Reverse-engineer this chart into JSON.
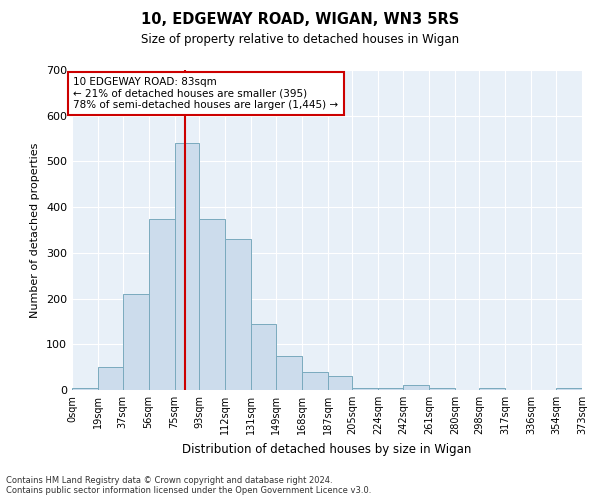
{
  "title": "10, EDGEWAY ROAD, WIGAN, WN3 5RS",
  "subtitle": "Size of property relative to detached houses in Wigan",
  "xlabel": "Distribution of detached houses by size in Wigan",
  "ylabel": "Number of detached properties",
  "bar_color": "#ccdcec",
  "bar_edge_color": "#7aaabe",
  "background_color": "#e8f0f8",
  "grid_color": "#ffffff",
  "red_line_color": "#cc0000",
  "red_line_x": 83,
  "annotation_text": "10 EDGEWAY ROAD: 83sqm\n← 21% of detached houses are smaller (395)\n78% of semi-detached houses are larger (1,445) →",
  "bin_edges": [
    0,
    19,
    37,
    56,
    75,
    93,
    112,
    131,
    149,
    168,
    187,
    205,
    224,
    242,
    261,
    280,
    298,
    317,
    336,
    354,
    373
  ],
  "bin_labels": [
    "0sqm",
    "19sqm",
    "37sqm",
    "56sqm",
    "75sqm",
    "93sqm",
    "112sqm",
    "131sqm",
    "149sqm",
    "168sqm",
    "187sqm",
    "205sqm",
    "224sqm",
    "242sqm",
    "261sqm",
    "280sqm",
    "298sqm",
    "317sqm",
    "336sqm",
    "354sqm",
    "373sqm"
  ],
  "bar_heights": [
    5,
    50,
    210,
    375,
    540,
    375,
    330,
    145,
    75,
    40,
    30,
    5,
    5,
    10,
    5,
    0,
    5,
    0,
    0,
    5
  ],
  "ylim": [
    0,
    700
  ],
  "yticks": [
    0,
    100,
    200,
    300,
    400,
    500,
    600,
    700
  ],
  "footnote": "Contains HM Land Registry data © Crown copyright and database right 2024.\nContains public sector information licensed under the Open Government Licence v3.0."
}
